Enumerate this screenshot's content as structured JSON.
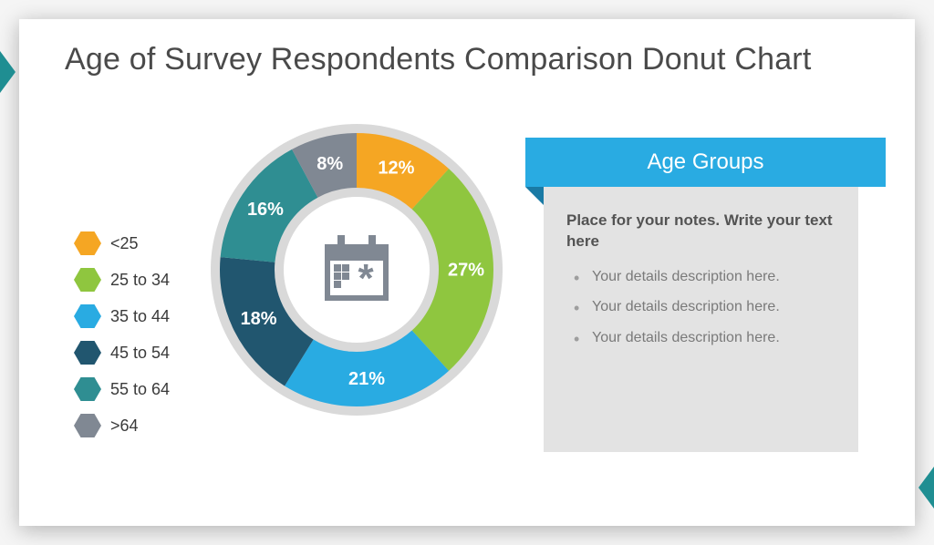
{
  "title": "Age of Survey Respondents Comparison Donut Chart",
  "chart": {
    "type": "donut",
    "start_angle_deg": 0,
    "direction": "clockwise",
    "outer_radius": 150,
    "inner_radius": 90,
    "ring_bg_color": "#d9d9d9",
    "ring_bg_outer_radius": 160,
    "ring_bg_inner_radius": 80,
    "gap_deg": 0,
    "label_fontsize": 20,
    "label_font_weight": 700,
    "label_color": "#ffffff",
    "background_color": "#ffffff",
    "segments": [
      {
        "key": "lt25",
        "label": "12%",
        "value": 12,
        "color": "#f5a623"
      },
      {
        "key": "25_34",
        "label": "27%",
        "value": 27,
        "color": "#8fc63f"
      },
      {
        "key": "35_44",
        "label": "21%",
        "value": 21,
        "color": "#29abe2"
      },
      {
        "key": "45_54",
        "label": "18%",
        "value": 18,
        "color": "#21566f"
      },
      {
        "key": "55_64",
        "label": "16%",
        "value": 16,
        "color": "#2f8e92"
      },
      {
        "key": "gt64",
        "label": "8%",
        "value": 8,
        "color": "#808893"
      }
    ],
    "center_icon": {
      "name": "calendar-icon",
      "fill": "#808893"
    }
  },
  "legend": {
    "marker_shape": "hexagon",
    "label_fontsize": 18,
    "items": [
      {
        "label": "<25",
        "color": "#f5a623"
      },
      {
        "label": "25 to 34",
        "color": "#8fc63f"
      },
      {
        "label": "35 to 44",
        "color": "#29abe2"
      },
      {
        "label": "45 to 54",
        "color": "#21566f"
      },
      {
        "label": "55 to 64",
        "color": "#2f8e92"
      },
      {
        "label": ">64",
        "color": "#808893"
      }
    ]
  },
  "panel": {
    "header": "Age Groups",
    "header_bg": "#29abe2",
    "header_ribbon_shadow": "#1a7aa5",
    "background": "#e3e3e3",
    "lead": "Place for your notes. Write your text here",
    "bullets": [
      "Your details description here.",
      "Your details description here.",
      "Your details description here."
    ]
  },
  "accent_triangle_color": "#1f8e92"
}
